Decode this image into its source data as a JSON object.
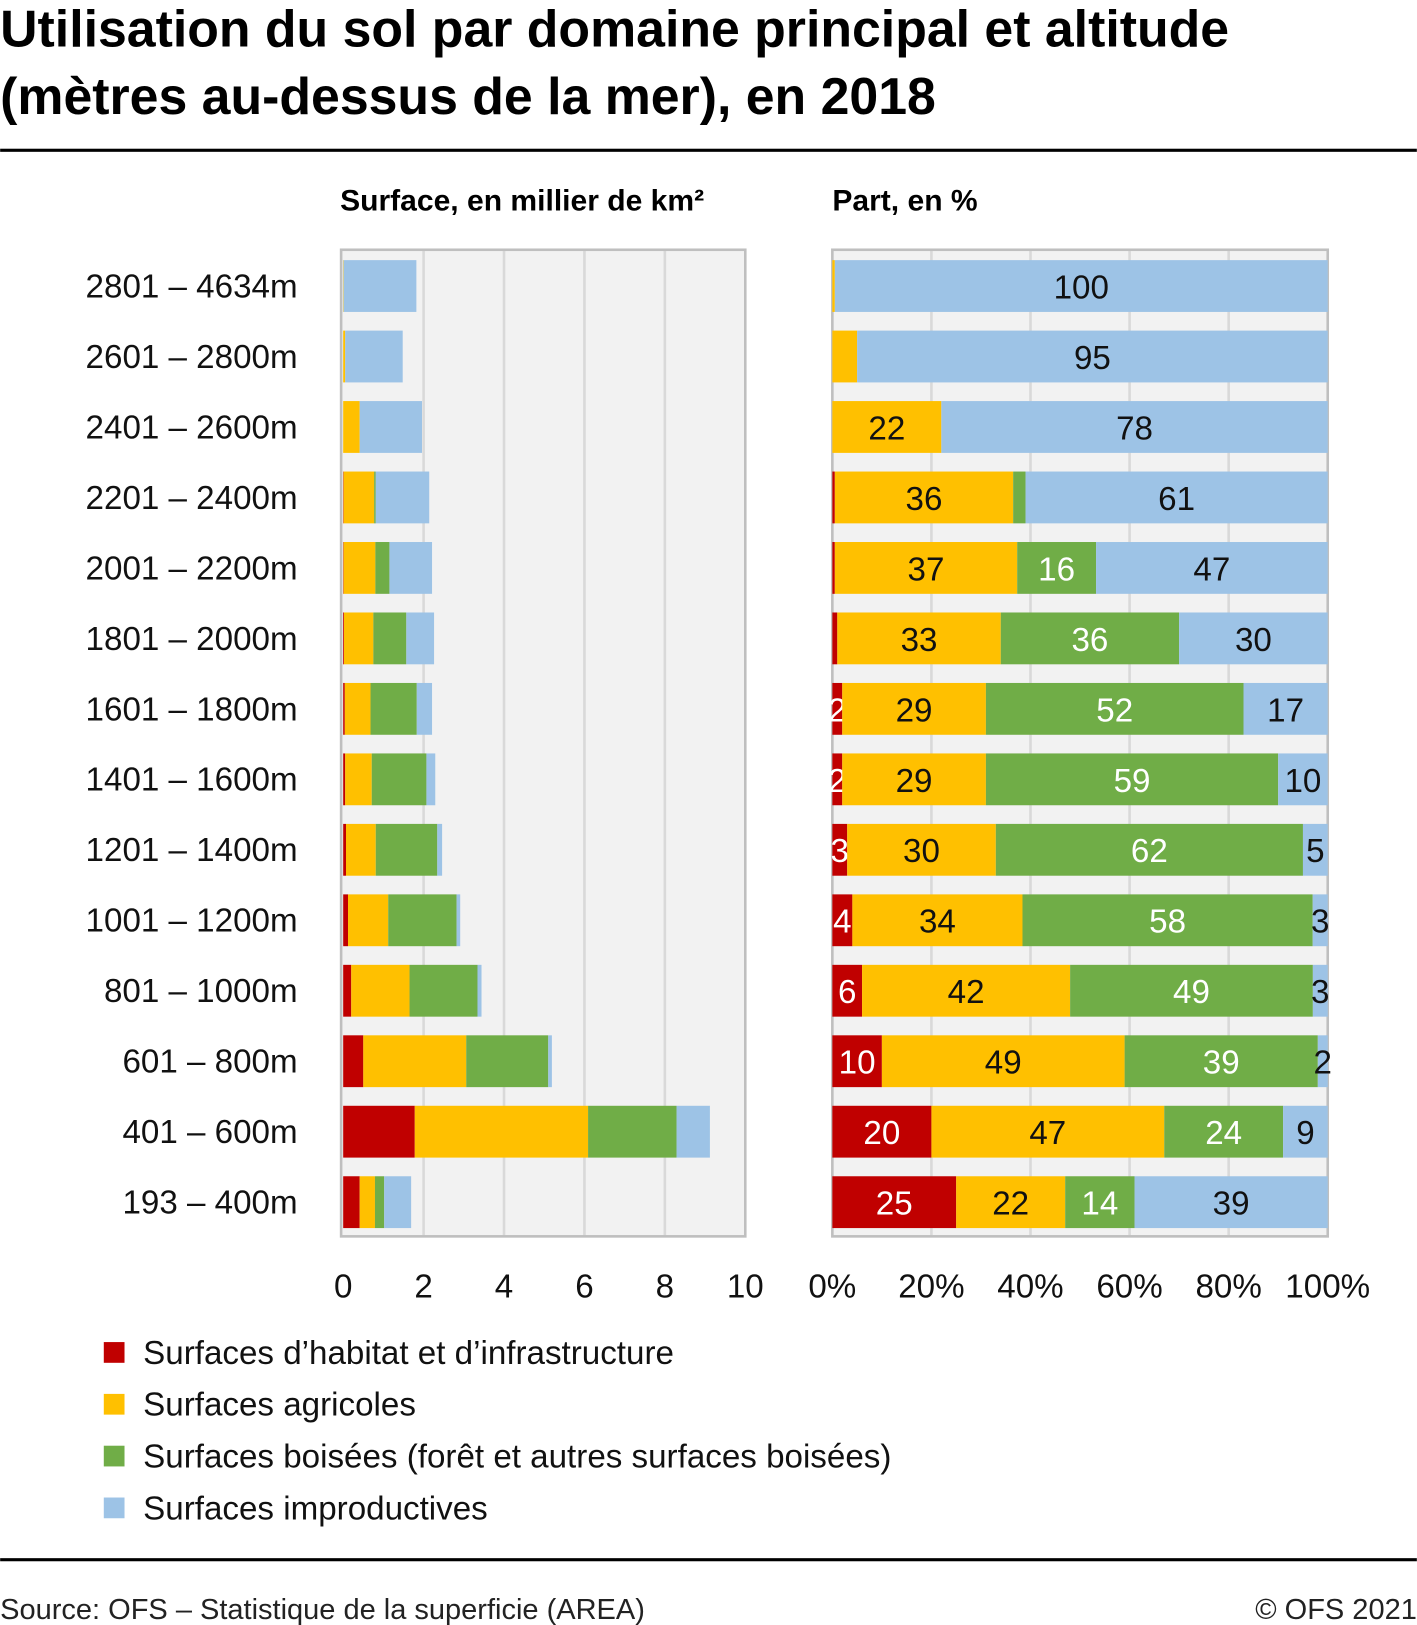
{
  "title_lines": [
    "Utilisation du sol par domaine principal et altitude",
    "(mètres au-dessus de la mer), en 2018"
  ],
  "source": "Source: OFS – Statistique de la superficie (AREA)",
  "copyright": "© OFS 2021",
  "colors": {
    "habitat": "#c00000",
    "agricole": "#ffc000",
    "boisee": "#70ad47",
    "improductive": "#9dc3e6",
    "plot_bg": "#f2f2f2",
    "grid": "#d9d9d9"
  },
  "legend": [
    {
      "label": "Surfaces d’habitat et d’infrastructure",
      "color": "#c00000"
    },
    {
      "label": "Surfaces agricoles",
      "color": "#ffc000"
    },
    {
      "label": "Surfaces boisées (forêt et autres surfaces boisées)",
      "color": "#70ad47"
    },
    {
      "label": "Surfaces improductives",
      "color": "#9dc3e6"
    }
  ],
  "chart_data": [
    {
      "type": "bar",
      "orientation": "horizontal",
      "stacked": true,
      "title": "Surface, en millier de km²",
      "categories": [
        "2801 – 4634m",
        "2601 – 2800m",
        "2401 – 2600m",
        "2201 – 2400m",
        "2001 – 2200m",
        "1801 – 2000m",
        "1601 – 1800m",
        "1401 – 1600m",
        "1201 – 1400m",
        "1001 – 1200m",
        "801 – 1000m",
        "601 – 800m",
        "401 – 600m",
        "193 – 400m"
      ],
      "series": [
        {
          "name": "Surfaces d’habitat et d’infrastructure",
          "values": [
            0,
            0,
            0,
            0.01,
            0.01,
            0.02,
            0.04,
            0.05,
            0.07,
            0.12,
            0.2,
            0.5,
            1.78,
            0.41
          ]
        },
        {
          "name": "Surfaces agricoles",
          "values": [
            0.01,
            0.05,
            0.41,
            0.76,
            0.79,
            0.73,
            0.64,
            0.66,
            0.74,
            1.0,
            1.45,
            2.56,
            4.31,
            0.38
          ]
        },
        {
          "name": "Surfaces boisées (forêt et autres surfaces boisées)",
          "values": [
            0,
            0,
            0,
            0.04,
            0.35,
            0.82,
            1.15,
            1.36,
            1.53,
            1.7,
            1.69,
            2.04,
            2.2,
            0.23
          ]
        },
        {
          "name": "Surfaces improductives",
          "values": [
            1.81,
            1.43,
            1.55,
            1.33,
            1.06,
            0.69,
            0.38,
            0.22,
            0.12,
            0.09,
            0.1,
            0.09,
            0.83,
            0.67
          ]
        }
      ],
      "xlim": [
        0,
        10
      ],
      "xticks": [
        "0",
        "2",
        "4",
        "6",
        "8",
        "10"
      ],
      "grid": true
    },
    {
      "type": "bar",
      "orientation": "horizontal",
      "stacked": true,
      "title": "Part, en %",
      "categories": [
        "2801 – 4634m",
        "2601 – 2800m",
        "2401 – 2600m",
        "2201 – 2400m",
        "2001 – 2200m",
        "1801 – 2000m",
        "1601 – 1800m",
        "1401 – 1600m",
        "1201 – 1400m",
        "1001 – 1200m",
        "801 – 1000m",
        "601 – 800m",
        "401 – 600m",
        "193 – 400m"
      ],
      "series": [
        {
          "name": "Surfaces d’habitat et d’infrastructure",
          "values": [
            0,
            0,
            0,
            0.5,
            0.5,
            1,
            2,
            2,
            3,
            4,
            6,
            10,
            20,
            25
          ],
          "labels": [
            null,
            null,
            null,
            null,
            null,
            null,
            "2",
            "2",
            "3",
            "4",
            "6",
            "10",
            "20",
            "25"
          ]
        },
        {
          "name": "Surfaces agricoles",
          "values": [
            0.5,
            5,
            22,
            36,
            37,
            33,
            29,
            29,
            30,
            34,
            42,
            49,
            47,
            22
          ],
          "labels": [
            null,
            null,
            "22",
            "36",
            "37",
            "33",
            "29",
            "29",
            "30",
            "34",
            "42",
            "49",
            "47",
            "22"
          ]
        },
        {
          "name": "Surfaces boisées (forêt et autres surfaces boisées)",
          "values": [
            0,
            0,
            0,
            2.5,
            16,
            36,
            52,
            59,
            62,
            58,
            49,
            39,
            24,
            14
          ],
          "labels": [
            null,
            null,
            null,
            null,
            "16",
            "36",
            "52",
            "59",
            "62",
            "58",
            "49",
            "39",
            "24",
            "14"
          ]
        },
        {
          "name": "Surfaces improductives",
          "values": [
            99.5,
            95,
            78,
            61,
            47,
            30,
            17,
            10,
            5,
            3,
            3,
            2,
            9,
            39
          ],
          "labels": [
            "100",
            "95",
            "78",
            "61",
            "47",
            "30",
            "17",
            "10",
            "5",
            "3",
            "3",
            "2",
            "9",
            "39"
          ]
        }
      ],
      "xlim": [
        0,
        100
      ],
      "xticks": [
        "0%",
        "20%",
        "40%",
        "60%",
        "80%",
        "100%"
      ],
      "grid": true
    }
  ]
}
